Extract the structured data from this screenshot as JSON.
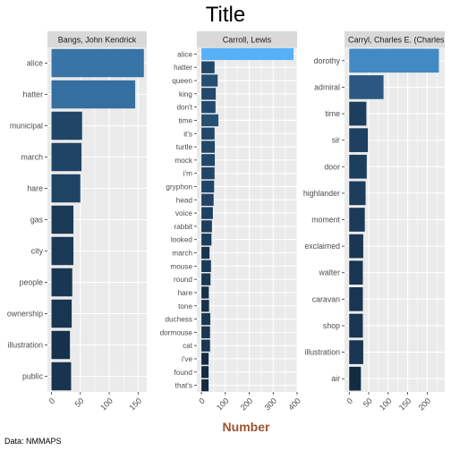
{
  "title": "Title",
  "xlabel": "Number",
  "caption": "Data: NMMAPS",
  "colors": {
    "low": "#132b43",
    "high": "#56b1f7",
    "xlabel": "#a0522d"
  },
  "chart_data": {
    "type": "bar",
    "orientation": "horizontal",
    "title": "Title",
    "xlabel": "Number",
    "ylabel": "",
    "grid": true,
    "fill_scale": "gradient by value (dark blue to light blue)",
    "panels": [
      {
        "name": "Bangs, John Kendrick",
        "xlim": [
          -7,
          165
        ],
        "xticks": [
          0,
          50,
          100,
          150
        ],
        "categories": [
          "alice",
          "hatter",
          "municipal",
          "march",
          "hare",
          "gas",
          "city",
          "people",
          "ownership",
          "illustration",
          "public"
        ],
        "values": [
          160,
          145,
          53,
          52,
          50,
          38,
          38,
          36,
          35,
          32,
          34
        ]
      },
      {
        "name": "Carroll, Lewis",
        "xlim": [
          -19,
          400
        ],
        "xticks": [
          0,
          100,
          200,
          300,
          400
        ],
        "categories": [
          "alice",
          "hatter",
          "queen",
          "king",
          "don't",
          "time",
          "it's",
          "turtle",
          "mock",
          "i'm",
          "gryphon",
          "head",
          "voice",
          "rabbit",
          "looked",
          "march",
          "mouse",
          "round",
          "hare",
          "tone",
          "duchess",
          "dormouse",
          "cat",
          "i've",
          "found",
          "that's"
        ],
        "values": [
          385,
          55,
          68,
          60,
          59,
          71,
          55,
          56,
          56,
          55,
          53,
          51,
          48,
          44,
          42,
          34,
          40,
          38,
          31,
          32,
          37,
          36,
          36,
          30,
          30,
          30
        ]
      },
      {
        "name": "Carryl, Charles E. (Charles Edward)",
        "xlim": [
          -12,
          245
        ],
        "xticks": [
          0,
          50,
          100,
          150,
          200
        ],
        "categories": [
          "dorothy",
          "admiral",
          "time",
          "sir",
          "door",
          "highlander",
          "moment",
          "exclaimed",
          "walter",
          "caravan",
          "shop",
          "illustration",
          "air"
        ],
        "values": [
          230,
          88,
          44,
          48,
          45,
          42,
          40,
          36,
          35,
          35,
          35,
          36,
          30
        ]
      }
    ]
  }
}
